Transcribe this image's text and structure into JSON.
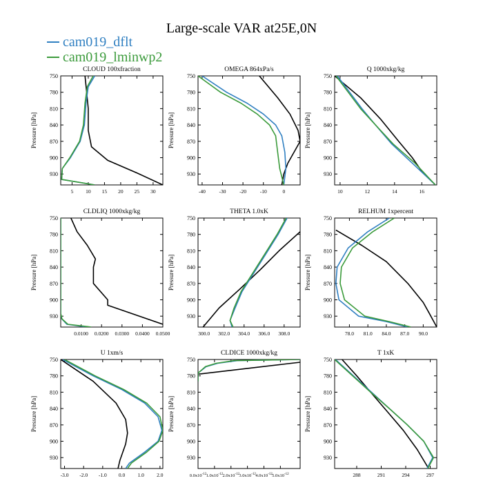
{
  "title": "Large-scale VAR at25E,0N",
  "legend": [
    {
      "label": "cam019_dflt",
      "color": "#2f7fc1"
    },
    {
      "label": "cam019_lminwp2",
      "color": "#3a9a3a"
    }
  ],
  "colors": {
    "control": "#000000",
    "dflt": "#2f7fc1",
    "lminwp2": "#3a9a3a"
  },
  "chart_data": [
    {
      "type": "line",
      "title": "CLOUD  100xfraction",
      "ylabel": "Pressure [hPa]",
      "ylim": [
        750,
        950
      ],
      "yticks": [
        750,
        780,
        810,
        840,
        870,
        900,
        930
      ],
      "xlim": [
        1.5,
        33
      ],
      "xticks": [
        5,
        10,
        15,
        20,
        25,
        30
      ],
      "xticklabels": [
        "5",
        "10",
        "15",
        "20",
        "25",
        "30"
      ],
      "series": [
        {
          "key": "control",
          "x": [
            9,
            9.5,
            10,
            10,
            11,
            16,
            25,
            33
          ],
          "y": [
            750,
            780,
            810,
            850,
            880,
            905,
            928,
            950
          ]
        },
        {
          "key": "dflt",
          "x": [
            12,
            10,
            9.3,
            8.8,
            7.5,
            4.5,
            2.0,
            1.8,
            12
          ],
          "y": [
            750,
            770,
            800,
            840,
            870,
            900,
            920,
            940,
            950
          ]
        },
        {
          "key": "lminwp2",
          "x": [
            11.5,
            9.7,
            9.0,
            8.5,
            7.3,
            4.3,
            2.0,
            1.8,
            12
          ],
          "y": [
            750,
            770,
            800,
            840,
            870,
            900,
            920,
            940,
            950
          ]
        }
      ]
    },
    {
      "type": "line",
      "title": "OMEGA  864xPa/s",
      "ylabel": "Pressure [hPa]",
      "ylim": [
        750,
        950
      ],
      "yticks": [
        750,
        780,
        810,
        840,
        870,
        900,
        930
      ],
      "xlim": [
        -42,
        8
      ],
      "xticks": [
        -40,
        -30,
        -20,
        -10,
        0
      ],
      "xticklabels": [
        "-40",
        "-30",
        "-20",
        "-10",
        "0"
      ],
      "series": [
        {
          "key": "control",
          "x": [
            -12,
            -3,
            3,
            7,
            8,
            5,
            2,
            0,
            -1
          ],
          "y": [
            750,
            790,
            820,
            850,
            870,
            890,
            910,
            930,
            950
          ]
        },
        {
          "key": "dflt",
          "x": [
            -40,
            -28,
            -18,
            -10,
            -4,
            -1,
            0.5,
            1,
            0
          ],
          "y": [
            750,
            780,
            800,
            820,
            840,
            860,
            890,
            920,
            950
          ]
        },
        {
          "key": "lminwp2",
          "x": [
            -42,
            -31,
            -21,
            -13,
            -7,
            -4,
            -3,
            -2,
            0
          ],
          "y": [
            750,
            780,
            800,
            820,
            840,
            860,
            890,
            920,
            950
          ]
        }
      ]
    },
    {
      "type": "line",
      "title": "Q  1000xkg/kg",
      "ylabel": "Pressure [hPa]",
      "ylim": [
        750,
        950
      ],
      "yticks": [
        750,
        780,
        810,
        840,
        870,
        900,
        930
      ],
      "xlim": [
        9.6,
        17.1
      ],
      "xticks": [
        10,
        12,
        14,
        16
      ],
      "xticklabels": [
        "10",
        "12",
        "14",
        "16"
      ],
      "series": [
        {
          "key": "control",
          "x": [
            9.6,
            11.5,
            13.0,
            14.3,
            15.3,
            16.0,
            17.0
          ],
          "y": [
            750,
            790,
            830,
            870,
            900,
            925,
            950
          ]
        },
        {
          "key": "dflt",
          "x": [
            9.8,
            10.7,
            11.6,
            12.6,
            13.8,
            15.3,
            17.0
          ],
          "y": [
            750,
            780,
            810,
            840,
            875,
            910,
            950
          ]
        },
        {
          "key": "lminwp2",
          "x": [
            9.7,
            10.6,
            11.5,
            12.6,
            13.9,
            15.5,
            17.0
          ],
          "y": [
            750,
            780,
            810,
            840,
            875,
            910,
            950
          ]
        }
      ]
    },
    {
      "type": "line",
      "title": "CLDLIQ  1000xkg/kg",
      "ylabel": "Pressure [hPa]",
      "ylim": [
        750,
        950
      ],
      "yticks": [
        750,
        780,
        810,
        840,
        870,
        900,
        930
      ],
      "xlim": [
        0,
        0.05
      ],
      "xticks": [
        0.01,
        0.02,
        0.03,
        0.04,
        0.05
      ],
      "xticklabels": [
        "0.0100",
        "0.0200",
        "0.0300",
        "0.0400",
        "0.0500"
      ],
      "series": [
        {
          "key": "control",
          "x": [
            0.005,
            0.008,
            0.013,
            0.017,
            0.016,
            0.016,
            0.023,
            0.023,
            0.05
          ],
          "y": [
            750,
            775,
            800,
            825,
            840,
            870,
            900,
            910,
            945
          ]
        },
        {
          "key": "dflt",
          "x": [
            0,
            0,
            0,
            0,
            0,
            0.0005,
            0.003,
            0.013
          ],
          "y": [
            750,
            800,
            850,
            900,
            925,
            935,
            945,
            950
          ]
        },
        {
          "key": "lminwp2",
          "x": [
            0,
            0,
            0,
            0,
            0,
            0.0006,
            0.0035,
            0.015
          ],
          "y": [
            750,
            800,
            850,
            900,
            925,
            935,
            945,
            950
          ]
        }
      ]
    },
    {
      "type": "line",
      "title": "THETA  1.0xK",
      "ylabel": "Pressure [hPa]",
      "ylim": [
        750,
        950
      ],
      "yticks": [
        750,
        780,
        810,
        840,
        870,
        900,
        930
      ],
      "xlim": [
        299.4,
        309.6
      ],
      "xticks": [
        300.0,
        302.0,
        304.0,
        306.0,
        308.0
      ],
      "xticklabels": [
        "300.0",
        "302.0",
        "304.0",
        "306.0",
        "308.0"
      ],
      "series": [
        {
          "key": "control",
          "x": [
            309.6,
            307.5,
            305.6,
            303.6,
            301.5,
            299.9
          ],
          "y": [
            775,
            810,
            845,
            880,
            915,
            950
          ]
        },
        {
          "key": "dflt",
          "x": [
            308.3,
            307.4,
            306.2,
            305.0,
            303.8,
            303.1,
            302.6,
            302.8
          ],
          "y": [
            750,
            780,
            815,
            850,
            885,
            915,
            938,
            950
          ]
        },
        {
          "key": "lminwp2",
          "x": [
            308.2,
            307.3,
            306.1,
            304.9,
            303.7,
            303.0,
            302.6,
            302.9
          ],
          "y": [
            750,
            780,
            815,
            850,
            885,
            915,
            938,
            950
          ]
        }
      ]
    },
    {
      "type": "line",
      "title": "RELHUM  1xpercent",
      "ylabel": "Pressure [hPa]",
      "ylim": [
        750,
        950
      ],
      "yticks": [
        750,
        780,
        810,
        840,
        870,
        900,
        930
      ],
      "xlim": [
        75.6,
        92.2
      ],
      "xticks": [
        78.0,
        81.0,
        84.0,
        87.0,
        90.0
      ],
      "xticklabels": [
        "78.0",
        "81.0",
        "84.0",
        "87.0",
        "90.0"
      ],
      "series": [
        {
          "key": "control",
          "x": [
            75.8,
            80,
            84,
            87.5,
            90.0,
            91.0,
            92.2
          ],
          "y": [
            772,
            800,
            830,
            870,
            905,
            925,
            950
          ]
        },
        {
          "key": "dflt",
          "x": [
            84.5,
            81.0,
            77.8,
            76.0,
            75.8,
            76.3,
            79.5,
            84.0,
            87.5
          ],
          "y": [
            750,
            775,
            805,
            840,
            870,
            900,
            930,
            940,
            950
          ]
        },
        {
          "key": "lminwp2",
          "x": [
            85.3,
            81.8,
            78.5,
            76.7,
            76.5,
            77.2,
            80.5,
            84.5,
            88.0
          ],
          "y": [
            750,
            775,
            805,
            840,
            870,
            900,
            930,
            940,
            950
          ]
        }
      ]
    },
    {
      "type": "line",
      "title": "U  1xm/s",
      "ylabel": "Pressure [hPa]",
      "ylim": [
        750,
        950
      ],
      "yticks": [
        750,
        780,
        810,
        840,
        870,
        900,
        930
      ],
      "xlim": [
        -3.2,
        2.15
      ],
      "xticks": [
        -3.0,
        -2.0,
        -1.0,
        0.0,
        1.0,
        2.0
      ],
      "xticklabels": [
        "-3.0",
        "-2.0",
        "-1.0",
        "0.0",
        "1.0",
        "2.0"
      ],
      "series": [
        {
          "key": "control",
          "x": [
            -3.2,
            -1.5,
            -0.3,
            0.2,
            0.3,
            0.2,
            -0.1,
            -0.2
          ],
          "y": [
            750,
            790,
            830,
            860,
            885,
            905,
            935,
            950
          ]
        },
        {
          "key": "dflt",
          "x": [
            -3.1,
            -1.5,
            0,
            1.2,
            1.9,
            2.1,
            1.9,
            1.2,
            0.4,
            0.2
          ],
          "y": [
            750,
            780,
            805,
            830,
            855,
            880,
            900,
            920,
            940,
            950
          ]
        },
        {
          "key": "lminwp2",
          "x": [
            -3.0,
            -1.4,
            0.1,
            1.3,
            2.0,
            2.15,
            1.95,
            1.3,
            0.5,
            0.3
          ],
          "y": [
            750,
            780,
            805,
            830,
            855,
            880,
            900,
            920,
            940,
            950
          ]
        }
      ]
    },
    {
      "type": "line",
      "title": "CLDICE  1000xkg/kg",
      "ylabel": "Pressure [hPa]",
      "ylim": [
        750,
        950
      ],
      "yticks": [
        750,
        780,
        810,
        840,
        870,
        900,
        930
      ],
      "xlim": [
        0,
        6.2e-12
      ],
      "xticks": [
        0,
        1e-12,
        2e-12,
        3e-12,
        4e-12,
        5e-12
      ],
      "xticklabels": [
        "0.0x10",
        "1.0x10",
        "2.0x10",
        "3.0x10",
        "4.0x10",
        "5.0x10"
      ],
      "xtick_exponent": "-12",
      "series": [
        {
          "key": "control",
          "x": [
            6.2e-12,
            0
          ],
          "y": [
            755,
            777
          ]
        },
        {
          "key": "dflt",
          "x": [
            6.2e-12,
            2.4e-12,
            1.2e-12,
            5e-13,
            0,
            0
          ],
          "y": [
            750,
            752,
            757,
            763,
            775,
            790
          ]
        },
        {
          "key": "lminwp2",
          "x": [
            6.2e-12,
            2.2e-12,
            1.1e-12,
            4.5e-13,
            0,
            0
          ],
          "y": [
            750,
            752,
            757,
            763,
            775,
            790
          ]
        }
      ]
    },
    {
      "type": "line",
      "title": "T  1xK",
      "ylabel": "Pressure [hPa]",
      "ylim": [
        750,
        950
      ],
      "yticks": [
        750,
        780,
        810,
        840,
        870,
        900,
        930
      ],
      "xlim": [
        285.3,
        297.8
      ],
      "xticks": [
        288,
        291,
        294,
        297
      ],
      "xticklabels": [
        "288",
        "291",
        "294",
        "297"
      ],
      "series": [
        {
          "key": "control",
          "x": [
            286.2,
            288.0,
            290.0,
            292.0,
            293.7,
            295.4,
            296.8
          ],
          "y": [
            750,
            780,
            815,
            850,
            880,
            915,
            950
          ]
        },
        {
          "key": "dflt",
          "x": [
            285.4,
            287.6,
            289.8,
            292.0,
            294.2,
            296.2,
            297.3,
            296.6
          ],
          "y": [
            750,
            780,
            810,
            840,
            870,
            900,
            930,
            950
          ]
        },
        {
          "key": "lminwp2",
          "x": [
            285.3,
            287.5,
            289.7,
            292.0,
            294.2,
            296.2,
            297.4,
            296.7
          ],
          "y": [
            750,
            780,
            810,
            840,
            870,
            900,
            930,
            950
          ]
        }
      ]
    }
  ]
}
